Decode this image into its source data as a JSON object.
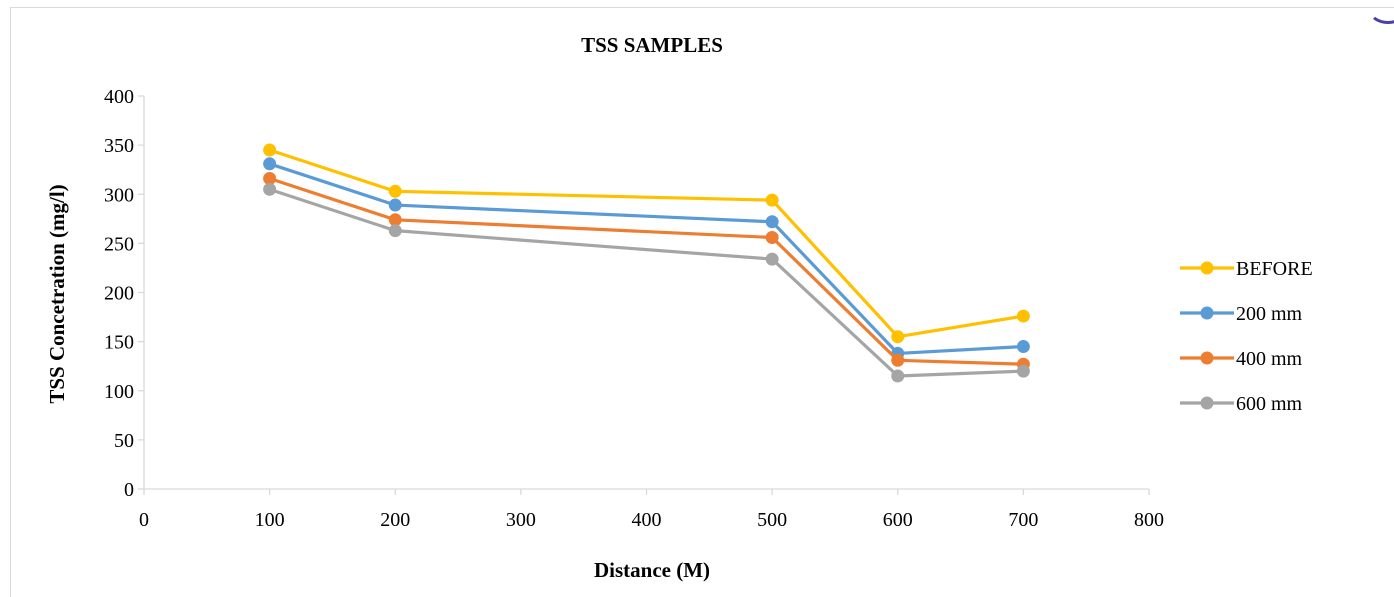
{
  "chart_data": {
    "type": "line",
    "title": "TSS SAMPLES",
    "xlabel": "Distance (M)",
    "ylabel": "TSS Concetration (mg/l)",
    "xlim": [
      0,
      800
    ],
    "ylim": [
      0,
      400
    ],
    "x_ticks": [
      0,
      100,
      200,
      300,
      400,
      500,
      600,
      700,
      800
    ],
    "y_ticks": [
      0,
      50,
      100,
      150,
      200,
      250,
      300,
      350,
      400
    ],
    "grid": false,
    "legend_position": "right",
    "x": [
      100,
      200,
      500,
      600,
      700
    ],
    "series": [
      {
        "name": "BEFORE",
        "color": "#ffc000",
        "values": [
          345,
          303,
          294,
          155,
          176
        ]
      },
      {
        "name": "200 mm",
        "color": "#5b9bd5",
        "values": [
          331,
          289,
          272,
          138,
          145
        ]
      },
      {
        "name": "400 mm",
        "color": "#ed7d31",
        "values": [
          316,
          274,
          256,
          131,
          127
        ]
      },
      {
        "name": "600 mm",
        "color": "#a5a5a5",
        "values": [
          305,
          263,
          234,
          115,
          120
        ]
      }
    ]
  }
}
